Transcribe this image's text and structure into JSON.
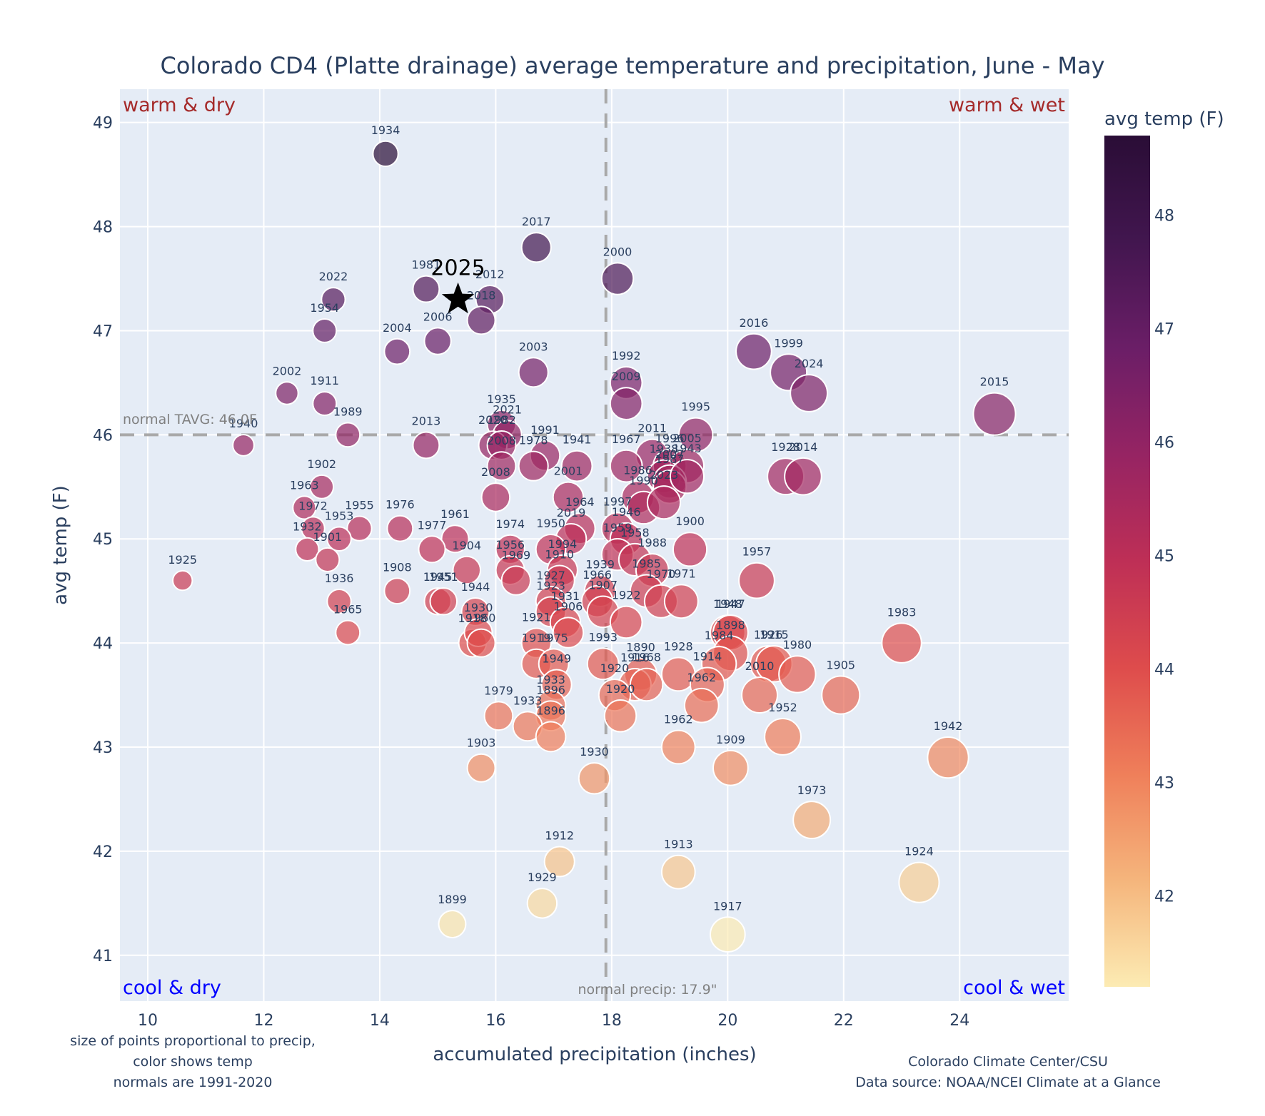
{
  "chart_data": {
    "type": "scatter",
    "title": "Colorado CD4 (Platte drainage) average temperature and precipitation, June - May",
    "xlabel": "accumulated precipitation (inches)",
    "ylabel": "avg temp (F)",
    "xlim": [
      9.52,
      25.88
    ],
    "ylim": [
      40.56,
      49.32
    ],
    "x_ticks": [
      10,
      12,
      14,
      16,
      18,
      20,
      22,
      24
    ],
    "y_ticks": [
      41,
      42,
      43,
      44,
      45,
      46,
      47,
      48,
      49
    ],
    "grid": true,
    "size_encoding": "precipitation",
    "color_encoding": "avg temp (F)",
    "colorbar": {
      "title": "avg temp (F)",
      "range": [
        41.2,
        48.7
      ],
      "ticks": [
        42,
        43,
        44,
        45,
        46,
        47,
        48
      ],
      "colorscale": [
        "#fcebb3",
        "#f5b57c",
        "#ef7f5a",
        "#de4c4c",
        "#be2f56",
        "#962463",
        "#6b1e67",
        "#42164f",
        "#2a0d36"
      ],
      "placement": "right"
    },
    "reference_lines": {
      "normal_temp": {
        "value": 46.0,
        "label": "normal TAVG: 46.0F"
      },
      "normal_precip": {
        "value": 17.9,
        "label": "normal precip: 17.9\""
      }
    },
    "quadrant_labels": {
      "top_left": "warm & dry",
      "top_right": "warm & wet",
      "bottom_left": "cool & dry",
      "bottom_right": "cool & wet"
    },
    "highlight": {
      "year": "2025",
      "precip": 15.35,
      "temp": 47.3,
      "marker": "star"
    },
    "points": [
      {
        "year": "1934",
        "precip": 14.1,
        "temp": 48.7
      },
      {
        "year": "2017",
        "precip": 16.7,
        "temp": 47.8
      },
      {
        "year": "2000",
        "precip": 18.1,
        "temp": 47.5
      },
      {
        "year": "1981",
        "precip": 14.8,
        "temp": 47.4
      },
      {
        "year": "2012",
        "precip": 15.9,
        "temp": 47.3
      },
      {
        "year": "2022",
        "precip": 13.2,
        "temp": 47.3
      },
      {
        "year": "2018",
        "precip": 15.75,
        "temp": 47.1
      },
      {
        "year": "1954",
        "precip": 13.05,
        "temp": 47.0
      },
      {
        "year": "2006",
        "precip": 15.0,
        "temp": 46.9
      },
      {
        "year": "2004",
        "precip": 14.3,
        "temp": 46.8
      },
      {
        "year": "2016",
        "precip": 20.45,
        "temp": 46.8
      },
      {
        "year": "2003",
        "precip": 16.65,
        "temp": 46.6
      },
      {
        "year": "1999",
        "precip": 21.05,
        "temp": 46.6
      },
      {
        "year": "1992",
        "precip": 18.25,
        "temp": 46.5
      },
      {
        "year": "2002",
        "precip": 12.4,
        "temp": 46.4
      },
      {
        "year": "2024",
        "precip": 21.4,
        "temp": 46.4
      },
      {
        "year": "2009",
        "precip": 18.25,
        "temp": 46.3
      },
      {
        "year": "1911",
        "precip": 13.05,
        "temp": 46.3
      },
      {
        "year": "2015",
        "precip": 24.6,
        "temp": 46.2
      },
      {
        "year": "1935",
        "precip": 16.1,
        "temp": 46.1
      },
      {
        "year": "1989",
        "precip": 13.45,
        "temp": 46.0
      },
      {
        "year": "2021",
        "precip": 16.2,
        "temp": 46.0
      },
      {
        "year": "1995",
        "precip": 19.45,
        "temp": 46.0
      },
      {
        "year": "1940",
        "precip": 11.65,
        "temp": 45.9
      },
      {
        "year": "2013",
        "precip": 14.8,
        "temp": 45.9
      },
      {
        "year": "2020",
        "precip": 15.95,
        "temp": 45.9
      },
      {
        "year": "1982",
        "precip": 16.1,
        "temp": 45.9
      },
      {
        "year": "1991",
        "precip": 16.85,
        "temp": 45.8
      },
      {
        "year": "2011",
        "precip": 18.7,
        "temp": 45.8
      },
      {
        "year": "1978",
        "precip": 16.65,
        "temp": 45.7
      },
      {
        "year": "1941",
        "precip": 17.4,
        "temp": 45.7
      },
      {
        "year": "1967",
        "precip": 18.25,
        "temp": 45.7
      },
      {
        "year": "2008",
        "precip": 16.1,
        "temp": 45.7
      },
      {
        "year": "1996",
        "precip": 19.0,
        "temp": 45.7
      },
      {
        "year": "2005",
        "precip": 19.3,
        "temp": 45.7
      },
      {
        "year": "1928",
        "precip": 21.0,
        "temp": 45.6
      },
      {
        "year": "2014",
        "precip": 21.3,
        "temp": 45.6
      },
      {
        "year": "1938",
        "precip": 18.9,
        "temp": 45.6
      },
      {
        "year": "2007",
        "precip": 19.0,
        "temp": 45.55
      },
      {
        "year": "1987",
        "precip": 19.0,
        "temp": 45.5
      },
      {
        "year": "1943",
        "precip": 19.3,
        "temp": 45.6
      },
      {
        "year": "1902",
        "precip": 13.0,
        "temp": 45.5
      },
      {
        "year": "1986",
        "precip": 18.45,
        "temp": 45.4
      },
      {
        "year": "2001",
        "precip": 17.25,
        "temp": 45.4
      },
      {
        "year": "2008b",
        "precip": 16.0,
        "temp": 45.4
      },
      {
        "year": "1963",
        "precip": 12.7,
        "temp": 45.3
      },
      {
        "year": "1990",
        "precip": 18.55,
        "temp": 45.3
      },
      {
        "year": "2023",
        "precip": 18.9,
        "temp": 45.35
      },
      {
        "year": "1972",
        "precip": 12.85,
        "temp": 45.1
      },
      {
        "year": "1955",
        "precip": 13.65,
        "temp": 45.1
      },
      {
        "year": "1976",
        "precip": 14.35,
        "temp": 45.1
      },
      {
        "year": "1964",
        "precip": 17.45,
        "temp": 45.1
      },
      {
        "year": "1997",
        "precip": 18.1,
        "temp": 45.1
      },
      {
        "year": "2019",
        "precip": 17.3,
        "temp": 45.0
      },
      {
        "year": "1953",
        "precip": 13.3,
        "temp": 45.0
      },
      {
        "year": "1961",
        "precip": 15.3,
        "temp": 45.0
      },
      {
        "year": "1946",
        "precip": 18.25,
        "temp": 45.0
      },
      {
        "year": "1974",
        "precip": 16.25,
        "temp": 44.9
      },
      {
        "year": "1950",
        "precip": 16.95,
        "temp": 44.9
      },
      {
        "year": "1932",
        "precip": 12.75,
        "temp": 44.9
      },
      {
        "year": "1977",
        "precip": 14.9,
        "temp": 44.9
      },
      {
        "year": "1900",
        "precip": 19.35,
        "temp": 44.9
      },
      {
        "year": "1959",
        "precip": 18.1,
        "temp": 44.85
      },
      {
        "year": "1958",
        "precip": 18.4,
        "temp": 44.8
      },
      {
        "year": "1901",
        "precip": 13.1,
        "temp": 44.8
      },
      {
        "year": "1904",
        "precip": 15.5,
        "temp": 44.7
      },
      {
        "year": "1956",
        "precip": 16.25,
        "temp": 44.7
      },
      {
        "year": "1994",
        "precip": 17.15,
        "temp": 44.7
      },
      {
        "year": "1988",
        "precip": 18.7,
        "temp": 44.7
      },
      {
        "year": "1925",
        "precip": 10.6,
        "temp": 44.6
      },
      {
        "year": "1969",
        "precip": 16.35,
        "temp": 44.6
      },
      {
        "year": "1910",
        "precip": 17.1,
        "temp": 44.6
      },
      {
        "year": "1957",
        "precip": 20.5,
        "temp": 44.6
      },
      {
        "year": "1908",
        "precip": 14.3,
        "temp": 44.5
      },
      {
        "year": "1939",
        "precip": 17.8,
        "temp": 44.5
      },
      {
        "year": "1966",
        "precip": 17.75,
        "temp": 44.4
      },
      {
        "year": "1985",
        "precip": 18.6,
        "temp": 44.5
      },
      {
        "year": "1945",
        "precip": 15.0,
        "temp": 44.4
      },
      {
        "year": "1951",
        "precip": 15.1,
        "temp": 44.4
      },
      {
        "year": "1936",
        "precip": 13.3,
        "temp": 44.4
      },
      {
        "year": "1927",
        "precip": 16.95,
        "temp": 44.4
      },
      {
        "year": "1907",
        "precip": 17.85,
        "temp": 44.3
      },
      {
        "year": "1970",
        "precip": 18.85,
        "temp": 44.4
      },
      {
        "year": "1971",
        "precip": 19.2,
        "temp": 44.4
      },
      {
        "year": "1944",
        "precip": 15.65,
        "temp": 44.3
      },
      {
        "year": "1923",
        "precip": 16.95,
        "temp": 44.3
      },
      {
        "year": "1931",
        "precip": 17.2,
        "temp": 44.2
      },
      {
        "year": "1922",
        "precip": 18.25,
        "temp": 44.2
      },
      {
        "year": "1918",
        "precip": 15.6,
        "temp": 44.0
      },
      {
        "year": "1930b",
        "precip": 15.7,
        "temp": 44.1
      },
      {
        "year": "1960",
        "precip": 15.75,
        "temp": 44.0
      },
      {
        "year": "1965",
        "precip": 13.45,
        "temp": 44.1
      },
      {
        "year": "1921",
        "precip": 16.7,
        "temp": 44.0
      },
      {
        "year": "1906",
        "precip": 17.25,
        "temp": 44.1
      },
      {
        "year": "1948",
        "precip": 20.0,
        "temp": 44.1
      },
      {
        "year": "1947",
        "precip": 20.05,
        "temp": 44.1
      },
      {
        "year": "1898",
        "precip": 20.05,
        "temp": 43.9
      },
      {
        "year": "1926",
        "precip": 20.7,
        "temp": 43.8
      },
      {
        "year": "1915",
        "precip": 20.8,
        "temp": 43.8
      },
      {
        "year": "1980",
        "precip": 21.2,
        "temp": 43.7
      },
      {
        "year": "1983",
        "precip": 23.0,
        "temp": 44.0
      },
      {
        "year": "1919",
        "precip": 16.7,
        "temp": 43.8
      },
      {
        "year": "1975",
        "precip": 17.0,
        "temp": 43.8
      },
      {
        "year": "1984",
        "precip": 19.85,
        "temp": 43.8
      },
      {
        "year": "1928b",
        "precip": 19.15,
        "temp": 43.7
      },
      {
        "year": "1890",
        "precip": 18.5,
        "temp": 43.7
      },
      {
        "year": "1916",
        "precip": 18.4,
        "temp": 43.6
      },
      {
        "year": "1968",
        "precip": 18.6,
        "temp": 43.6
      },
      {
        "year": "1949",
        "precip": 17.05,
        "temp": 43.6
      },
      {
        "year": "1993",
        "precip": 17.85,
        "temp": 43.8
      },
      {
        "year": "1914",
        "precip": 19.65,
        "temp": 43.6
      },
      {
        "year": "2010",
        "precip": 20.55,
        "temp": 43.5
      },
      {
        "year": "1905",
        "precip": 21.95,
        "temp": 43.5
      },
      {
        "year": "1920",
        "precip": 18.05,
        "temp": 43.5
      },
      {
        "year": "1933",
        "precip": 16.95,
        "temp": 43.4
      },
      {
        "year": "1896",
        "precip": 16.95,
        "temp": 43.3
      },
      {
        "year": "1979",
        "precip": 16.05,
        "temp": 43.3
      },
      {
        "year": "1962",
        "precip": 19.55,
        "temp": 43.4
      },
      {
        "year": "1920b",
        "precip": 18.15,
        "temp": 43.3
      },
      {
        "year": "1933b",
        "precip": 16.55,
        "temp": 43.2
      },
      {
        "year": "1952",
        "precip": 20.95,
        "temp": 43.1
      },
      {
        "year": "1909",
        "precip": 20.05,
        "temp": 42.8
      },
      {
        "year": "1903",
        "precip": 15.75,
        "temp": 42.8
      },
      {
        "year": "1962b",
        "precip": 19.15,
        "temp": 43.0
      },
      {
        "year": "1896b",
        "precip": 16.95,
        "temp": 43.1
      },
      {
        "year": "1942",
        "precip": 23.8,
        "temp": 42.9
      },
      {
        "year": "1930",
        "precip": 17.7,
        "temp": 42.7
      },
      {
        "year": "1973",
        "precip": 21.45,
        "temp": 42.3
      },
      {
        "year": "1912",
        "precip": 17.1,
        "temp": 41.9
      },
      {
        "year": "1913",
        "precip": 19.15,
        "temp": 41.8
      },
      {
        "year": "1924",
        "precip": 23.3,
        "temp": 41.7
      },
      {
        "year": "1929",
        "precip": 16.8,
        "temp": 41.5
      },
      {
        "year": "1899",
        "precip": 15.25,
        "temp": 41.3
      },
      {
        "year": "1917",
        "precip": 20.0,
        "temp": 41.2
      }
    ]
  },
  "notes": {
    "left": [
      "size of points proportional to precip,",
      "color shows temp",
      "normals are 1991-2020"
    ],
    "right": [
      "Colorado Climate Center/CSU",
      "Data source: NOAA/NCEI Climate at a Glance"
    ]
  }
}
